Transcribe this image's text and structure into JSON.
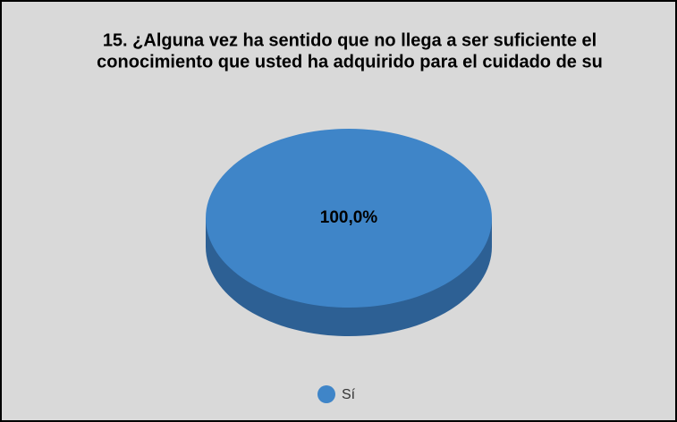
{
  "chart_data": {
    "type": "pie",
    "title": [
      "15. ¿Alguna vez ha sentido que no llega a ser suficiente el",
      "conocimiento que usted ha adquirido para el cuidado de su"
    ],
    "categories": [
      "Sí"
    ],
    "values": [
      100
    ],
    "value_labels": [
      "100,0%"
    ],
    "colors": [
      "#3f85c8"
    ],
    "side_colors": [
      "#2d6094"
    ],
    "legend": "bottom"
  }
}
